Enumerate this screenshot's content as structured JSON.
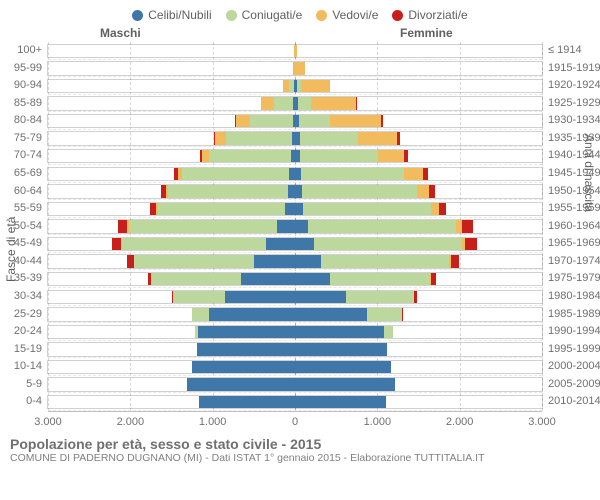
{
  "legend": [
    {
      "label": "Celibi/Nubili",
      "color": "#3f77a8"
    },
    {
      "label": "Coniugati/e",
      "color": "#bcd89c"
    },
    {
      "label": "Vedovi/e",
      "color": "#f2bb5e"
    },
    {
      "label": "Divorziati/e",
      "color": "#c81f1a"
    }
  ],
  "headers": {
    "male": "Maschi",
    "female": "Femmine"
  },
  "axis_titles": {
    "left": "Fasce di età",
    "right": "Anni di nascita"
  },
  "x": {
    "max": 3000,
    "ticks": [
      -3000,
      -2000,
      -1000,
      0,
      1000,
      2000,
      3000
    ],
    "labels": [
      "3.000",
      "2.000",
      "1.000",
      "0",
      "1.000",
      "2.000",
      "3.000"
    ]
  },
  "colors": {
    "celibi": "#3f77a8",
    "coniugati": "#bcd89c",
    "vedovi": "#f2bb5e",
    "divorziati": "#c81f1a",
    "grid": "#d7d7d7",
    "center": "#b0b0b0",
    "row_sep": "#e8e8e8",
    "bg": "#ffffff"
  },
  "typography": {
    "legend_pt": 12,
    "ylabel_pt": 11,
    "xlabel_pt": 11,
    "title_pt": 14,
    "sub_pt": 10.5
  },
  "rows": [
    {
      "age": "100+",
      "birth": "≤ 1914",
      "m": {
        "c": 0,
        "co": 0,
        "v": 10,
        "d": 0
      },
      "f": {
        "c": 0,
        "co": 0,
        "v": 30,
        "d": 0
      }
    },
    {
      "age": "95-99",
      "birth": "1915-1919",
      "m": {
        "c": 0,
        "co": 0,
        "v": 25,
        "d": 0
      },
      "f": {
        "c": 0,
        "co": 0,
        "v": 120,
        "d": 0
      }
    },
    {
      "age": "90-94",
      "birth": "1920-1924",
      "m": {
        "c": 10,
        "co": 60,
        "v": 80,
        "d": 0
      },
      "f": {
        "c": 20,
        "co": 50,
        "v": 350,
        "d": 0
      }
    },
    {
      "age": "85-89",
      "birth": "1925-1929",
      "m": {
        "c": 20,
        "co": 230,
        "v": 160,
        "d": 0
      },
      "f": {
        "c": 40,
        "co": 160,
        "v": 540,
        "d": 10
      }
    },
    {
      "age": "80-84",
      "birth": "1930-1934",
      "m": {
        "c": 30,
        "co": 520,
        "v": 170,
        "d": 10
      },
      "f": {
        "c": 50,
        "co": 380,
        "v": 620,
        "d": 20
      }
    },
    {
      "age": "75-79",
      "birth": "1935-1939",
      "m": {
        "c": 40,
        "co": 800,
        "v": 130,
        "d": 20
      },
      "f": {
        "c": 60,
        "co": 700,
        "v": 480,
        "d": 30
      }
    },
    {
      "age": "70-74",
      "birth": "1940-1944",
      "m": {
        "c": 50,
        "co": 1000,
        "v": 80,
        "d": 30
      },
      "f": {
        "c": 60,
        "co": 950,
        "v": 320,
        "d": 40
      }
    },
    {
      "age": "65-69",
      "birth": "1945-1949",
      "m": {
        "c": 70,
        "co": 1300,
        "v": 50,
        "d": 50
      },
      "f": {
        "c": 70,
        "co": 1250,
        "v": 230,
        "d": 60
      }
    },
    {
      "age": "60-64",
      "birth": "1950-1954",
      "m": {
        "c": 90,
        "co": 1450,
        "v": 30,
        "d": 60
      },
      "f": {
        "c": 80,
        "co": 1400,
        "v": 150,
        "d": 70
      }
    },
    {
      "age": "55-59",
      "birth": "1955-1959",
      "m": {
        "c": 120,
        "co": 1550,
        "v": 20,
        "d": 70
      },
      "f": {
        "c": 100,
        "co": 1550,
        "v": 100,
        "d": 90
      }
    },
    {
      "age": "50-54",
      "birth": "1960-1964",
      "m": {
        "c": 220,
        "co": 1800,
        "v": 15,
        "d": 110
      },
      "f": {
        "c": 160,
        "co": 1800,
        "v": 70,
        "d": 130
      }
    },
    {
      "age": "45-49",
      "birth": "1965-1969",
      "m": {
        "c": 350,
        "co": 1750,
        "v": 10,
        "d": 110
      },
      "f": {
        "c": 230,
        "co": 1800,
        "v": 40,
        "d": 140
      }
    },
    {
      "age": "40-44",
      "birth": "1970-1974",
      "m": {
        "c": 500,
        "co": 1450,
        "v": 5,
        "d": 80
      },
      "f": {
        "c": 320,
        "co": 1550,
        "v": 20,
        "d": 100
      }
    },
    {
      "age": "35-39",
      "birth": "1975-1979",
      "m": {
        "c": 650,
        "co": 1100,
        "v": 0,
        "d": 40
      },
      "f": {
        "c": 420,
        "co": 1220,
        "v": 10,
        "d": 60
      }
    },
    {
      "age": "30-34",
      "birth": "1980-1984",
      "m": {
        "c": 850,
        "co": 630,
        "v": 0,
        "d": 20
      },
      "f": {
        "c": 620,
        "co": 830,
        "v": 0,
        "d": 30
      }
    },
    {
      "age": "25-29",
      "birth": "1985-1989",
      "m": {
        "c": 1050,
        "co": 200,
        "v": 0,
        "d": 5
      },
      "f": {
        "c": 880,
        "co": 420,
        "v": 0,
        "d": 10
      }
    },
    {
      "age": "20-24",
      "birth": "1990-1994",
      "m": {
        "c": 1180,
        "co": 30,
        "v": 0,
        "d": 0
      },
      "f": {
        "c": 1080,
        "co": 110,
        "v": 0,
        "d": 0
      }
    },
    {
      "age": "15-19",
      "birth": "1995-1999",
      "m": {
        "c": 1190,
        "co": 0,
        "v": 0,
        "d": 0
      },
      "f": {
        "c": 1120,
        "co": 0,
        "v": 0,
        "d": 0
      }
    },
    {
      "age": "10-14",
      "birth": "2000-2004",
      "m": {
        "c": 1250,
        "co": 0,
        "v": 0,
        "d": 0
      },
      "f": {
        "c": 1170,
        "co": 0,
        "v": 0,
        "d": 0
      }
    },
    {
      "age": "5-9",
      "birth": "2005-2009",
      "m": {
        "c": 1310,
        "co": 0,
        "v": 0,
        "d": 0
      },
      "f": {
        "c": 1220,
        "co": 0,
        "v": 0,
        "d": 0
      }
    },
    {
      "age": "0-4",
      "birth": "2010-2014",
      "m": {
        "c": 1170,
        "co": 0,
        "v": 0,
        "d": 0
      },
      "f": {
        "c": 1100,
        "co": 0,
        "v": 0,
        "d": 0
      }
    }
  ],
  "footer": {
    "title": "Popolazione per età, sesso e stato civile - 2015",
    "sub": "COMUNE DI PADERNO DUGNANO (MI) - Dati ISTAT 1° gennaio 2015 - Elaborazione TUTTITALIA.IT"
  }
}
